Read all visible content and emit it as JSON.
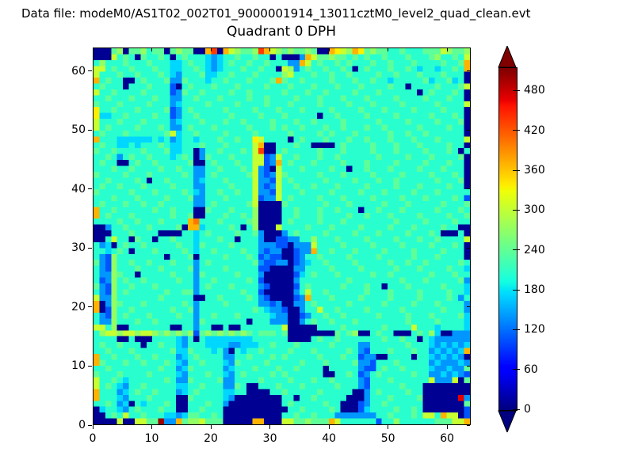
{
  "header": {
    "data_file": "Data file: modeM0/AS1T02_002T01_9000001914_13011cztM0_level2_quad_clean.evt"
  },
  "chart_data": {
    "type": "heatmap",
    "title": "Quadrant 0 DPH",
    "xlabel": "",
    "ylabel": "",
    "x_range": [
      0,
      64
    ],
    "y_range": [
      0,
      64
    ],
    "x_ticks": [
      0,
      10,
      20,
      30,
      40,
      50,
      60
    ],
    "y_ticks": [
      0,
      10,
      20,
      30,
      40,
      50,
      60
    ],
    "colormap": "jet",
    "vmin": 0,
    "vmax": 515,
    "grid_on": false,
    "colorbar": {
      "ticks": [
        0,
        60,
        120,
        180,
        240,
        300,
        360,
        420,
        480
      ],
      "extend": "both",
      "position": "right"
    },
    "cell_encoding": {
      "chars": "0123456789abcdef",
      "value_formula": "counts = 8 + 33 * char_index",
      "note": "approximate DPH counts per detector pixel, 64x64, read from figure"
    },
    "rows_top_to_bottom_y63_to_y0": [
      "0007807786770787700bd0b98778db9878778700ba98ba78776676667779877 8",
      "0009676076676067666545667667660600 04b9778776767667666766678 66769",
      "6866676667666556766545676676676664 4b96766767666766766676666 7667b",
      "9967667666766556676545666766766098467667667606766676676566 56676b",
      "9666766766676546667556676667666689666766766766667667666766676660",
      "b676600676667447666566766676667b76676666766676676656666675667560",
      "6766606667666306766676667666676667666766676667666676606666766679",
      "9667666676666347667666676676666676667667666676667666666067666760",
      "6676667666766446676667666676676666766676667666766667666676667660",
      "7666766667666456666766667666676667666676666766676666766666766669",
      "a667666766667346766666766667666766676666766667666766667666676660",
      "a556676666766346676666676666766676666606676666766667666667666760",
      "9666766676666456667666766766667666766766667666667666676666766670",
      "9676666766676446766676666676667676676667667666766766666766667660",
      "6766676666667956676666766667666667666676766676666676676676666660",
      "b666555555656456656667667 66a966660676667666766766676667666766669",
      "676655656667655666766676666 9b00666766000067666676667666766667660",
      "766766667666755660466766676 9d00676666676667666676667666676667 60",
      "66764676676665676047666766699349667666766766666676666766676 66670",
      "676600676676666670067666766993 4b67666766667666766667666676667660",
      "6667667666676676644667666769430966676666766066766676666766676660",
      "7666676667666667644676666679434976666676667666676666766667666760",
      "6676666760667666645666766669443967666667666676667667666666766670",
      "6766766676666766644666676669434966766766676666766667666766667660",
      "7666667666766667654667667669443966676666766667666766667666766666",
      "6667666766667666744666766669344967666676667666676666766676666763",
      "6766676676676666644676666679000076666667666766666766676666676667",
      "b667666666766766600766676668000066766676676660667666766666766676",
      "b676667666666766700666766768000066766676666766766676666766667667",
      "66667667666766 66bc66676666780000676666766676666666676666766 66766",
      "0046676667666670bb5666676068000966667666766667666676667666676600",
      "000666766660000665676666766740004676666766667666766667666 7600060",
      "00696607660667666566676606664003344668666766667666676667667 66669",
      "6450676676666676657666676666444330444966667666676666766667666760",
      "66567606667666676566766667664344003 44b667666766667666676666 76660",
      "6438666666660666706666766676343300346676666766667666667666766660",
      "7438667667666766646766666667433440345667666676666676676676666676",
      "6438666766676666746666766666330000446666766667666667666766667665",
      "6448766066666766647666667666400000356766676666676676666667666766",
      "6348676676666676646676666676300000466666666766666666766676666674",
      "7438667666766666646766676666430000367666667666766066676666676665",
      "64386766666676 6774666666676630000046966766666676667666676666 7665",
      "94486666666766666006676666764300003 4b66676666766667666676666764",
      "b04876667666666764666676666644340044676666676666676666766676 6664",
      "b038667666666766746666666667654430046696676666766666766666676664",
      "6438676667666676646676667666665440034667667666667666676667666675",
      "6448666766766666647666666606664440046766766676666666676666766665",
      "9968006666666006646600600666666690000066667666666766669666566665",
      "6899899899878787837878787876777670000000076780067660006768500444",
      "6666006000666654606555555556666660000676676666666766766065444444",
      "6766766606676654666555544555667666766666766664466666676665454545",
      "6676667666666755766656406566766667666766666764366676667664 54545b",
      "b667666766766645676666446676667676666676667663440066660665454540",
      "b766676676667654667666547666676666676667666674436667666664544454",
      "6676666666676645766666456667666766766660666664336766766665445447",
      "7666766667666654666766546766667676666660066763467666667664454543",
      "9667656666667644766667446666766667666766766664366676666669444907",
      "9676546676666655667666447600666766676666676664366666766600000000",
      "b66645676676664567666655660000667666667666660046766667660 0000000",
      "b666546667666600766666540000000066066766666000466676666 7000000e4",
      "6676450656667600666766400000000067666667660003466766666600000007",
      "0566546766676600667666000000000006676666760003566667667600000003",
      "006769667666554577667600000000006676676664444444667666 76996b9903",
      "00009009977f44b78897770000 0bb00099778777b96666663668666666 77799b"
    ]
  }
}
